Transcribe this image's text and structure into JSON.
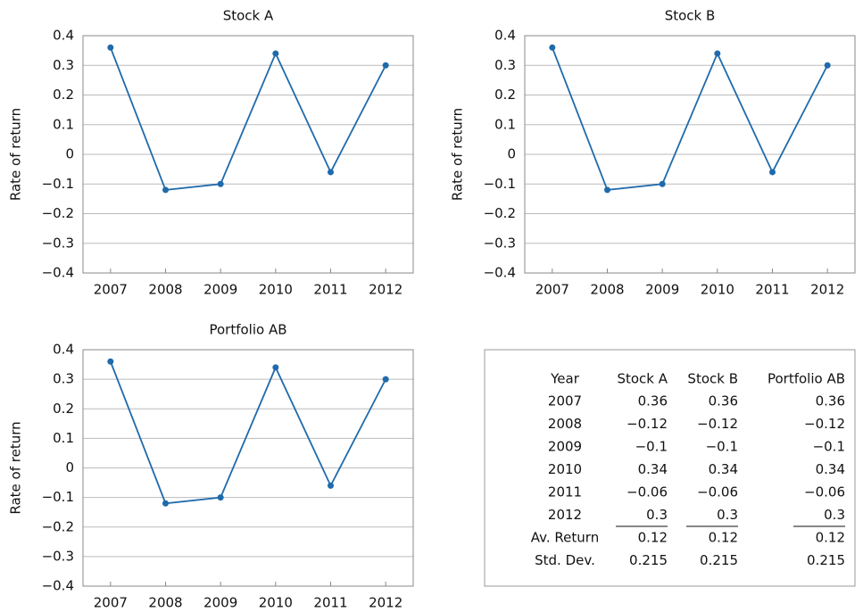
{
  "chart_data": [
    {
      "type": "line",
      "title": "Stock A",
      "y_label": "Rate of return",
      "categories": [
        "2007",
        "2008",
        "2009",
        "2010",
        "2011",
        "2012"
      ],
      "values": [
        0.36,
        -0.12,
        -0.1,
        0.34,
        -0.06,
        0.3
      ],
      "color": "#1f6aab",
      "ylim": [
        -0.4,
        0.4
      ],
      "yticks": [
        {
          "value": -0.4,
          "label": "−0.4"
        },
        {
          "value": -0.3,
          "label": "−0.3"
        },
        {
          "value": -0.2,
          "label": "−0.2"
        },
        {
          "value": -0.1,
          "label": "−0.1"
        },
        0,
        0.1,
        0.2,
        0.3,
        0.4
      ],
      "grid": true
    },
    {
      "type": "line",
      "title": "Stock B",
      "y_label": "Rate of return",
      "categories": [
        "2007",
        "2008",
        "2009",
        "2010",
        "2011",
        "2012"
      ],
      "values": [
        0.36,
        -0.12,
        -0.1,
        0.34,
        -0.06,
        0.3
      ],
      "color": "#1f6aab",
      "ylim": [
        -0.4,
        0.4
      ],
      "yticks": [
        {
          "value": -0.4,
          "label": "−0.4"
        },
        {
          "value": -0.3,
          "label": "−0.3"
        },
        {
          "value": -0.2,
          "label": "−0.2"
        },
        {
          "value": -0.1,
          "label": "−0.1"
        },
        0,
        0.1,
        0.2,
        0.3,
        0.4
      ],
      "grid": true
    },
    {
      "type": "line",
      "title": "Portfolio AB",
      "y_label": "Rate of return",
      "categories": [
        "2007",
        "2008",
        "2009",
        "2010",
        "2011",
        "2012"
      ],
      "values": [
        0.36,
        -0.12,
        -0.1,
        0.34,
        -0.06,
        0.3
      ],
      "color": "#1f6aab",
      "ylim": [
        -0.4,
        0.4
      ],
      "yticks": [
        {
          "value": -0.4,
          "label": "−0.4"
        },
        {
          "value": -0.3,
          "label": "−0.3"
        },
        {
          "value": -0.2,
          "label": "−0.2"
        },
        {
          "value": -0.1,
          "label": "−0.1"
        },
        0,
        0.1,
        0.2,
        0.3,
        0.4
      ],
      "grid": true
    }
  ],
  "table": {
    "header": [
      "Year",
      "Stock A",
      "Stock B",
      "Portfolio AB"
    ],
    "rows": [
      [
        "2007",
        "0.36",
        "0.36",
        "0.36"
      ],
      [
        "2008",
        "−0.12",
        "−0.12",
        "−0.12"
      ],
      [
        "2009",
        "−0.1",
        "−0.1",
        "−0.1"
      ],
      [
        "2010",
        "0.34",
        "0.34",
        "0.34"
      ],
      [
        "2011",
        "−0.06",
        "−0.06",
        "−0.06"
      ],
      [
        "2012",
        "0.3",
        "0.3",
        "0.3"
      ],
      [
        "Av. Return",
        "0.12",
        "0.12",
        "0.12"
      ],
      [
        "Std. Dev.",
        "0.215",
        "0.215",
        "0.215"
      ]
    ]
  }
}
